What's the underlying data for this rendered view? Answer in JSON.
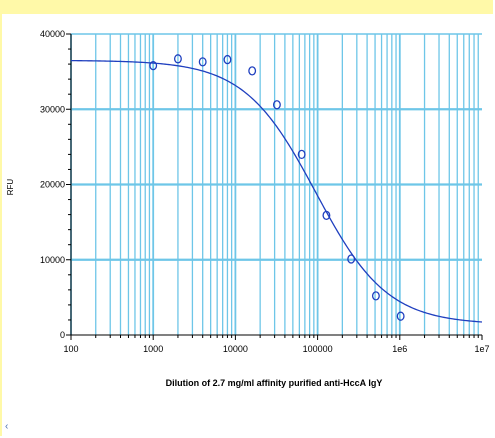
{
  "chart_data": {
    "type": "scatter",
    "title": "",
    "xlabel": "Dilution of 2.7 mg/ml affinity purified anti-HccA IgY",
    "ylabel": "RFU",
    "xscale": "log",
    "xlim": [
      100,
      10000000
    ],
    "ylim": [
      0,
      40000
    ],
    "grid": true,
    "legend": "none",
    "x_tick_labels": [
      "100",
      "1000",
      "10000",
      "100000",
      "1e6",
      "1e7"
    ],
    "y_tick_labels": [
      "0",
      "10000",
      "20000",
      "30000",
      "40000"
    ],
    "series": [
      {
        "kind": "points",
        "x": [
          1000,
          2000,
          4000,
          8000,
          16000,
          32000,
          64000,
          128000,
          256000,
          512000,
          1024000
        ],
        "y": [
          35800,
          36700,
          36300,
          36600,
          35100,
          30600,
          24000,
          15900,
          10100,
          5200,
          2500
        ]
      },
      {
        "kind": "fit-curve",
        "top": 36500,
        "bottom": 1400,
        "ec50": 95000,
        "hill": 1.0,
        "x_range": [
          100,
          10000000
        ]
      }
    ],
    "colors": {
      "grid": "#6ec6e8",
      "series": "#1f3fbf",
      "frame_border": "#fff9a8"
    }
  },
  "page": {
    "corner_mark": "‹"
  }
}
